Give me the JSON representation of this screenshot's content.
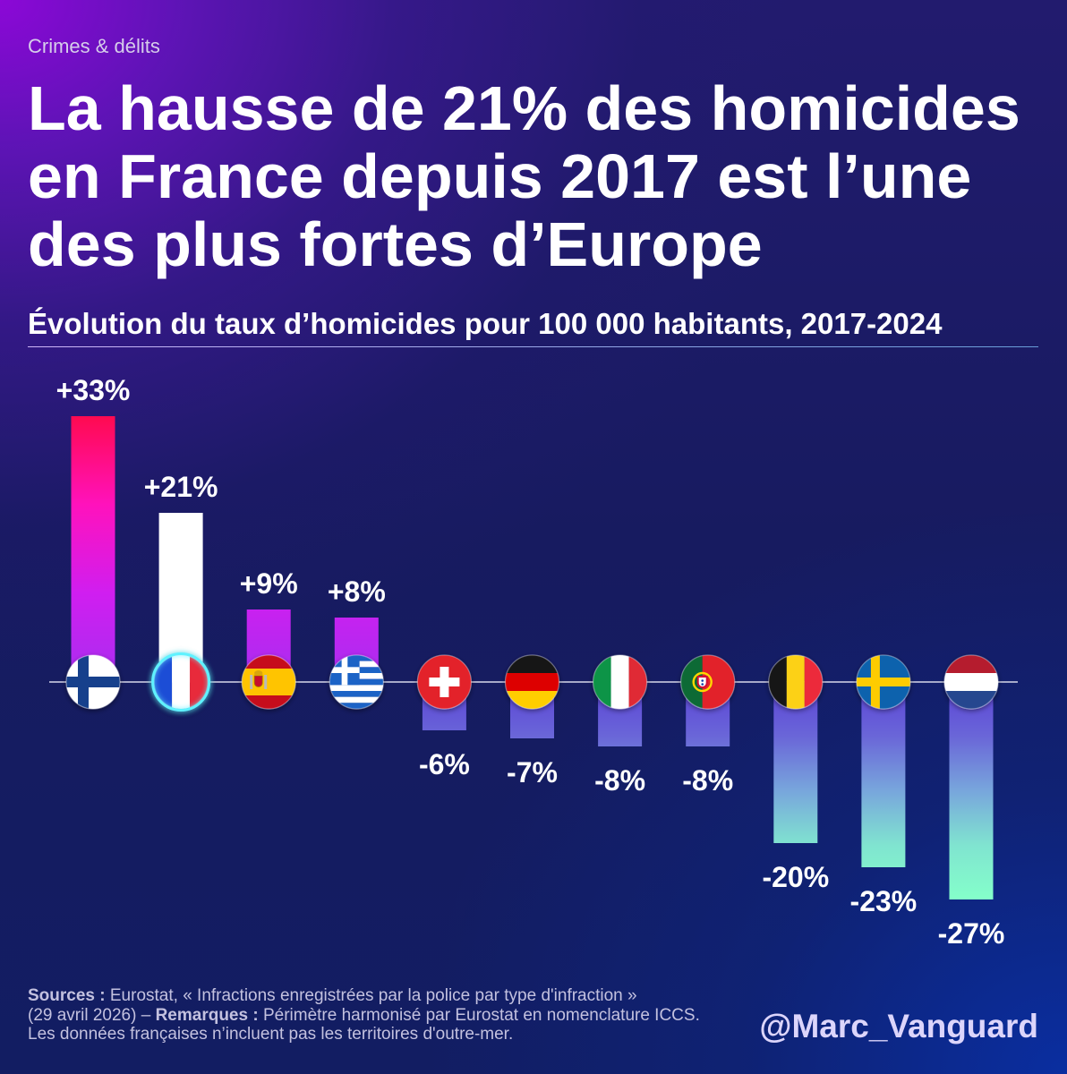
{
  "header": {
    "kicker": "Crimes & délits",
    "title_lines": [
      "La hausse de 21% des homicides",
      "en France depuis 2017 est l’une",
      "des plus fortes d’Europe"
    ]
  },
  "chart_data": {
    "type": "bar",
    "title": "Évolution du taux d’homicides pour 100 000 habitants, 2017-2024",
    "categories": [
      "finland-flag-icon",
      "france-flag-icon",
      "spain-flag-icon",
      "greece-flag-icon",
      "switzerland-flag-icon",
      "germany-flag-icon",
      "italy-flag-icon",
      "portugal-flag-icon",
      "belgium-flag-icon",
      "sweden-flag-icon",
      "netherlands-flag-icon"
    ],
    "values": [
      33,
      21,
      9,
      8,
      -6,
      -7,
      -8,
      -8,
      -20,
      -23,
      -27
    ],
    "labels": [
      "+33%",
      "+21%",
      "+9%",
      "+8%",
      "-6%",
      "-7%",
      "-8%",
      "-8%",
      "-20%",
      "-23%",
      "-27%"
    ],
    "highlight_index": 1,
    "grid": false,
    "colors": {
      "positive_gradient": [
        "#ff0a50",
        "#ff12bc",
        "#d01ef0",
        "#a82ef0"
      ],
      "negative_gradient": [
        "#5a42d6",
        "#6a66d8",
        "#78a6dc",
        "#80e4d0",
        "#84ffca"
      ],
      "highlight_bar": "#ffffff",
      "highlight_ring": "#5ef2ff",
      "zero_line": "#d8d8ea"
    }
  },
  "footer": {
    "sources_label": "Sources :",
    "sources_text": " Eurostat, « Infractions enregistrées par la police par type d'infraction »",
    "sources_date": "(29 avril 2026) – ",
    "remarks_label": "Remarques :",
    "remarks_text": " Périmètre harmonisé par Eurostat en nomenclature ICCS.",
    "remarks_note": "Les données françaises n’incluent pas les territoires d'outre-mer."
  },
  "brand": {
    "handle": "@Marc_Vanguard"
  }
}
